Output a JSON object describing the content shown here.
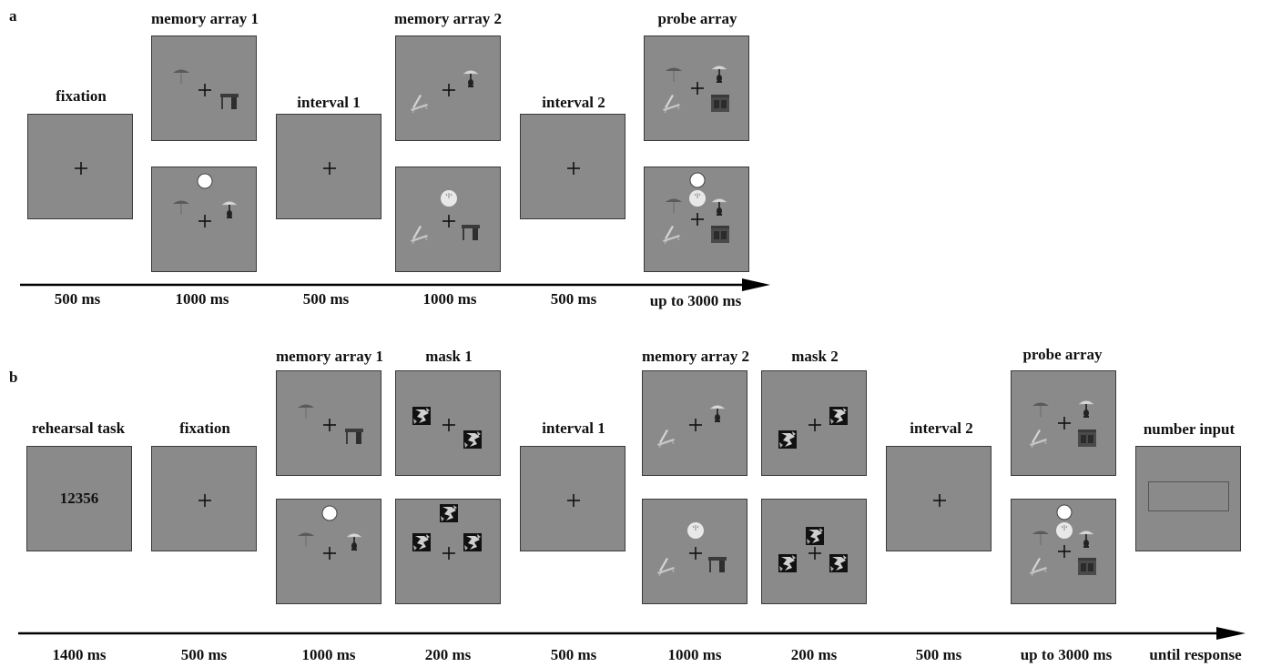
{
  "panels": {
    "a": {
      "letter": "a",
      "labels": {
        "fixation": "fixation",
        "memory_array_1": "memory array 1",
        "interval_1": "interval 1",
        "memory_array_2": "memory array 2",
        "interval_2": "interval 2",
        "probe_array": "probe array"
      },
      "durations": [
        "500 ms",
        "1000 ms",
        "500 ms",
        "1000 ms",
        "500 ms",
        "up to 3000 ms"
      ]
    },
    "b": {
      "letter": "b",
      "labels": {
        "rehearsal_task": "rehearsal task",
        "fixation": "fixation",
        "memory_array_1": "memory array 1",
        "mask_1": "mask 1",
        "interval_1": "interval 1",
        "memory_array_2": "memory array 2",
        "mask_2": "mask 2",
        "interval_2": "interval 2",
        "probe_array": "probe array",
        "number_input": "number input"
      },
      "rehearsal_digits": "12356",
      "durations": [
        "1400 ms",
        "500 ms",
        "1000 ms",
        "200 ms",
        "500 ms",
        "1000 ms",
        "200 ms",
        "500 ms",
        "up to 3000 ms",
        "until response"
      ]
    }
  },
  "icons": [
    "fixation-cross-icon",
    "umbrella-icon",
    "table-icon",
    "lamp-icon",
    "deck-chair-icon",
    "cabinet-icon",
    "clock-icon",
    "cue-circle-icon",
    "mask-noise-icon"
  ],
  "colors": {
    "screen_bg": "#8a8a8a",
    "screen_border": "#3a3a3a",
    "arrow": "#000000"
  }
}
